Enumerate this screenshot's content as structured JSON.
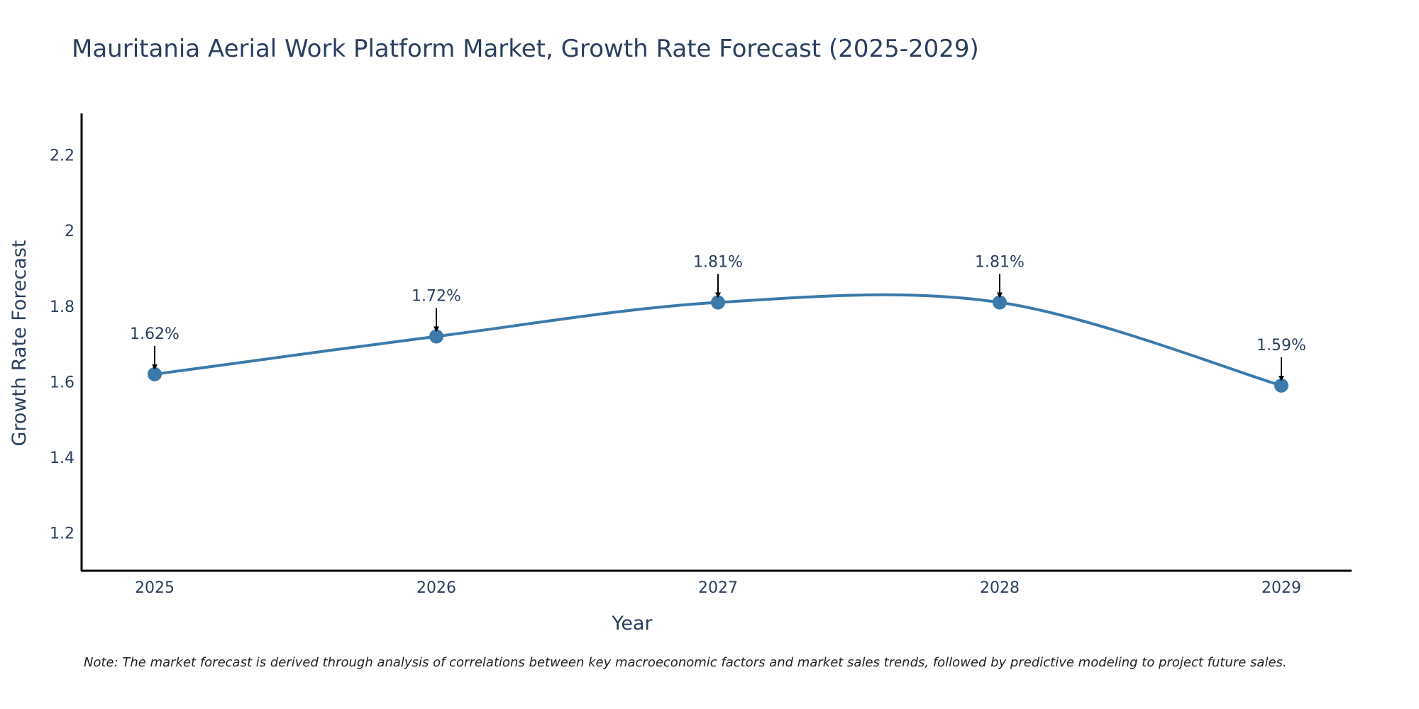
{
  "chart_data": {
    "type": "line",
    "title": "Mauritania Aerial Work Platform Market, Growth Rate Forecast (2025-2029)",
    "xlabel": "Year",
    "ylabel": "Growth Rate Forecast",
    "categories": [
      "2025",
      "2026",
      "2027",
      "2028",
      "2029"
    ],
    "values": [
      1.62,
      1.72,
      1.81,
      1.81,
      1.59
    ],
    "data_labels": [
      "1.62%",
      "1.72%",
      "1.81%",
      "1.81%",
      "1.59%"
    ],
    "ylim": [
      1.1,
      2.31
    ],
    "yticks": [
      1.2,
      1.4,
      1.6,
      1.8,
      2.0,
      2.2
    ],
    "ytick_labels": [
      "1.2",
      "1.4",
      "1.6",
      "1.8",
      "2",
      "2.2"
    ],
    "line_shape": "spline",
    "grid": false,
    "legend": "none",
    "note": "Note: The market forecast is derived through analysis of correlations between key macroeconomic factors and market sales trends, followed by predictive modeling to project future sales.",
    "colors": {
      "line": "#3b7aaa",
      "marker": "#3b7aaa",
      "arrow": "#000000",
      "axis": "#000000",
      "text": "#2a3f5f"
    }
  }
}
